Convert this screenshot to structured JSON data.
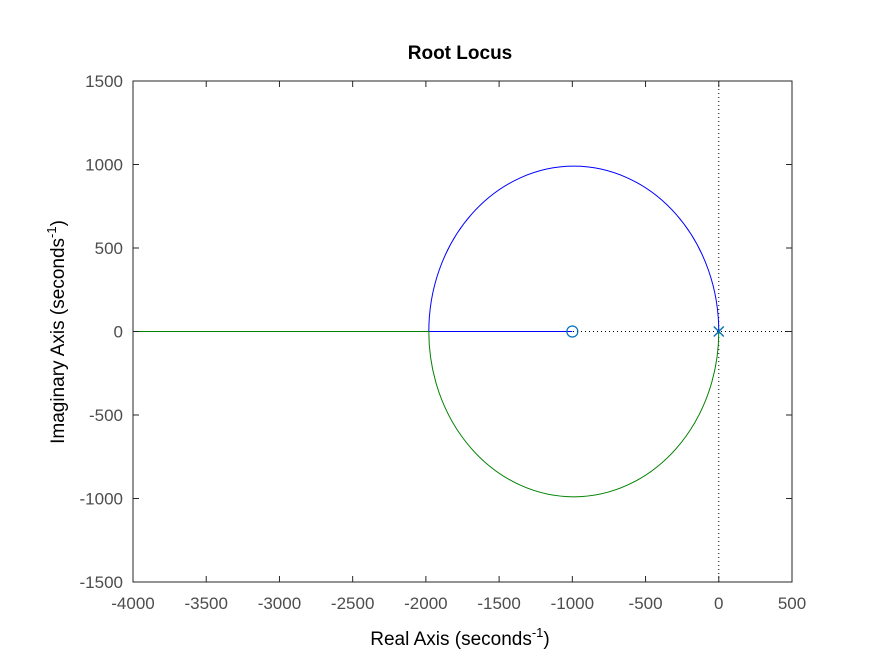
{
  "chart_data": {
    "type": "line",
    "title": "Root Locus",
    "xlabel": {
      "text": "Real Axis (seconds",
      "sup": "-1",
      "end": ")"
    },
    "ylabel": {
      "text": "Imaginary Axis (seconds",
      "sup": "-1",
      "end": ")"
    },
    "xlim": [
      -4000,
      500
    ],
    "ylim": [
      -1500,
      1500
    ],
    "xticks": [
      -4000,
      -3500,
      -3000,
      -2500,
      -2000,
      -1500,
      -1000,
      -500,
      0,
      500
    ],
    "yticks": [
      -1500,
      -1000,
      -500,
      0,
      500,
      1000,
      1500
    ],
    "grid": false,
    "series": [
      {
        "color": "#0000ff",
        "description": "upper branch: from pole at 0, circle arc through upper half-plane to breakaway at -1980, then along real axis to zero at -1000",
        "circle": {
          "center": [
            -990,
            0
          ],
          "radius": 990
        },
        "points": [
          [
            0,
            0
          ],
          [
            -990,
            990
          ],
          [
            -1980,
            0
          ],
          [
            -1000,
            0
          ]
        ]
      },
      {
        "color": "#008000",
        "description": "lower branch: from pole at 0, circle arc through lower half-plane to breakaway at -1980, then along real axis to -4000",
        "circle": {
          "center": [
            -990,
            0
          ],
          "radius": 990
        },
        "points": [
          [
            0,
            0
          ],
          [
            -990,
            -990
          ],
          [
            -1980,
            0
          ],
          [
            -4000,
            0
          ]
        ]
      }
    ],
    "poles": [
      [
        0,
        0
      ]
    ],
    "zeros": [
      [
        -1000,
        0
      ]
    ],
    "marker_color": "#0072bd",
    "axis_color": "#262626"
  }
}
